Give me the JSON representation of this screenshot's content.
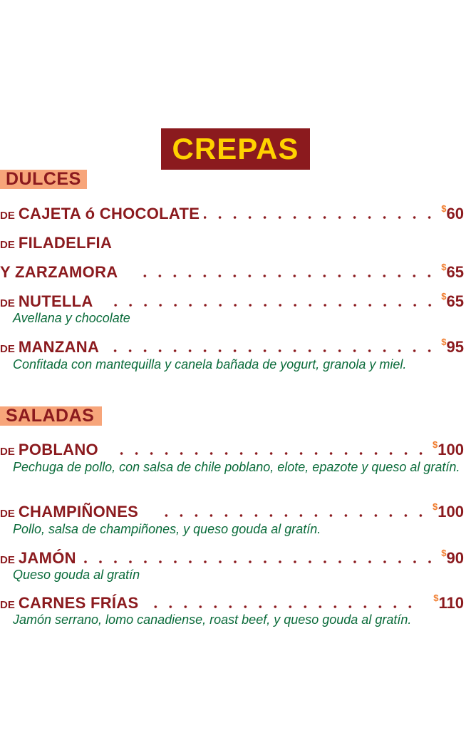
{
  "title": "CREPAS",
  "sections": [
    {
      "label": "DULCES",
      "items": [
        {
          "prefix": "DE",
          "name": "CAJETA ó CHOCOLATE",
          "price": "60"
        },
        {
          "prefix": "DE",
          "name": "FILADELFIA"
        },
        {
          "prefix": "",
          "name": "Y ZARZAMORA",
          "price": "65"
        },
        {
          "prefix": "DE",
          "name": "NUTELLA",
          "price": "65",
          "description": "Avellana y chocolate"
        },
        {
          "prefix": "DE",
          "name": "MANZANA",
          "price": "95",
          "description": "Confitada con mantequilla y canela  bañada de yogurt, granola y miel."
        }
      ]
    },
    {
      "label": "SALADAS",
      "items": [
        {
          "prefix": "DE",
          "name": "POBLANO",
          "price": "100",
          "description": "Pechuga de pollo, con salsa de chile  poblano, elote, epazote y queso al gratín."
        },
        {
          "prefix": "DE",
          "name": "CHAMPIÑONES",
          "price": "100",
          "description": "Pollo, salsa de champiñones,  y queso gouda al gratín."
        },
        {
          "prefix": "DE",
          "name": "JAMÓN",
          "price": "90",
          "description": "Queso gouda al gratín"
        },
        {
          "prefix": "DE",
          "name": "CARNES FRÍAS",
          "price": "110",
          "description": "Jamón serrano, lomo canadiense,  roast beef, y queso gouda al gratín."
        }
      ]
    }
  ],
  "currency_symbol": "$",
  "colors": {
    "primary": "#8B1A1E",
    "title_text": "#FFD200",
    "section_bg": "#F7A57A",
    "description": "#0A6B3A",
    "currency": "#F07A2A"
  }
}
